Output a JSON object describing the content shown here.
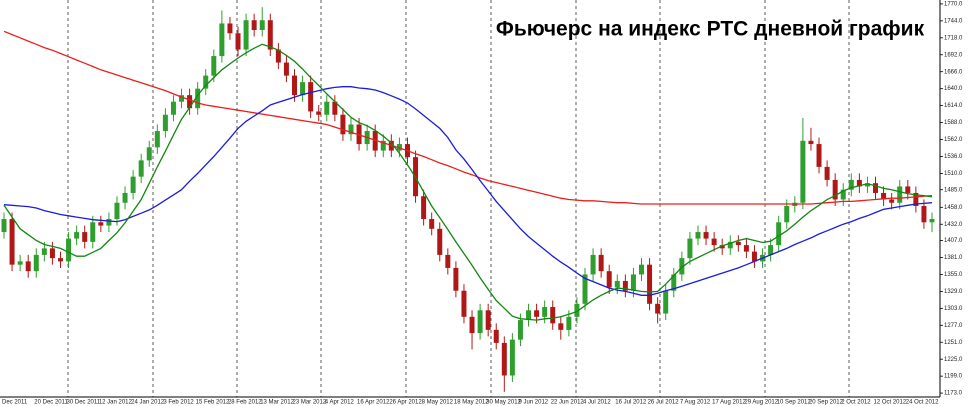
{
  "chart_data": {
    "type": "candlestick",
    "title": "Фьючерс на индекс РТС дневной график",
    "categories": [
      "Dec 2011",
      null,
      null,
      null,
      "20 Dec 2011",
      null,
      null,
      null,
      "30 Dec 2011",
      null,
      null,
      null,
      "12 Jan 2012",
      null,
      null,
      null,
      "24 Jan 2012",
      null,
      null,
      null,
      "3 Feb 2012",
      null,
      null,
      null,
      "15 Feb 2012",
      null,
      null,
      null,
      "28 Feb 2012",
      null,
      null,
      null,
      "13 Mar 2012",
      null,
      null,
      null,
      "23 Mar 2012",
      null,
      null,
      null,
      "4 Apr 2012",
      null,
      null,
      null,
      "16 Apr 2012",
      null,
      null,
      null,
      "26 Apr 2012",
      null,
      null,
      null,
      "8 May 2012",
      null,
      null,
      null,
      "18 May 2012",
      null,
      null,
      null,
      "30 May 2012",
      null,
      null,
      null,
      "9 Jun 2012",
      null,
      null,
      null,
      "22 Jun 2012",
      null,
      null,
      null,
      "4 Jul 2012",
      null,
      null,
      null,
      "16 Jul 2012",
      null,
      null,
      null,
      "26 Jul 2012",
      null,
      null,
      null,
      "7 Aug 2012",
      null,
      null,
      null,
      "17 Aug 2012",
      null,
      null,
      null,
      "29 Aug 2012",
      null,
      null,
      null,
      "10 Sep 2012",
      null,
      null,
      null,
      "20 Sep 2012",
      null,
      null,
      null,
      "2 Oct 2012",
      null,
      null,
      null,
      "12 Oct 2012",
      null,
      null,
      null,
      "24 Oct 2012",
      null,
      null,
      null
    ],
    "open": [
      1420,
      1440,
      1370,
      1375,
      1360,
      1385,
      1395,
      1380,
      1375,
      1410,
      1420,
      1405,
      1435,
      1430,
      1440,
      1465,
      1480,
      1505,
      1530,
      1550,
      1575,
      1600,
      1620,
      1630,
      1610,
      1640,
      1660,
      1690,
      1740,
      1725,
      1700,
      1745,
      1730,
      1745,
      1700,
      1680,
      1660,
      1630,
      1650,
      1605,
      1600,
      1620,
      1600,
      1570,
      1585,
      1555,
      1575,
      1545,
      1560,
      1545,
      1555,
      1535,
      1475,
      1440,
      1425,
      1385,
      1365,
      1330,
      1290,
      1265,
      1300,
      1270,
      1250,
      1200,
      1255,
      1285,
      1300,
      1290,
      1305,
      1280,
      1270,
      1290,
      1310,
      1355,
      1385,
      1360,
      1335,
      1345,
      1330,
      1355,
      1370,
      1310,
      1295,
      1330,
      1355,
      1380,
      1410,
      1420,
      1410,
      1400,
      1395,
      1405,
      1400,
      1390,
      1375,
      1385,
      1400,
      1435,
      1460,
      1465,
      1560,
      1555,
      1520,
      1500,
      1470,
      1485,
      1500,
      1490,
      1495,
      1480,
      1470,
      1465,
      1490,
      1480,
      1460,
      1435
    ],
    "high": [
      1450,
      1450,
      1385,
      1385,
      1395,
      1405,
      1405,
      1390,
      1420,
      1430,
      1430,
      1445,
      1445,
      1450,
      1475,
      1490,
      1515,
      1540,
      1560,
      1585,
      1610,
      1630,
      1640,
      1640,
      1650,
      1670,
      1700,
      1760,
      1750,
      1735,
      1755,
      1755,
      1765,
      1755,
      1710,
      1690,
      1670,
      1660,
      1660,
      1615,
      1630,
      1630,
      1610,
      1595,
      1595,
      1585,
      1585,
      1570,
      1570,
      1565,
      1565,
      1545,
      1485,
      1450,
      1435,
      1395,
      1375,
      1340,
      1300,
      1310,
      1310,
      1280,
      1260,
      1265,
      1295,
      1310,
      1310,
      1315,
      1315,
      1290,
      1300,
      1320,
      1365,
      1395,
      1395,
      1370,
      1355,
      1355,
      1365,
      1380,
      1380,
      1320,
      1340,
      1365,
      1390,
      1420,
      1430,
      1430,
      1420,
      1410,
      1415,
      1415,
      1410,
      1400,
      1395,
      1410,
      1445,
      1470,
      1475,
      1595,
      1580,
      1565,
      1530,
      1510,
      1495,
      1510,
      1510,
      1505,
      1505,
      1490,
      1480,
      1500,
      1500,
      1490,
      1470,
      1450
    ],
    "low": [
      1410,
      1360,
      1360,
      1350,
      1350,
      1375,
      1370,
      1365,
      1365,
      1400,
      1395,
      1395,
      1420,
      1420,
      1430,
      1455,
      1470,
      1495,
      1520,
      1540,
      1565,
      1590,
      1610,
      1600,
      1600,
      1630,
      1650,
      1680,
      1715,
      1690,
      1690,
      1720,
      1720,
      1690,
      1670,
      1650,
      1620,
      1620,
      1595,
      1590,
      1590,
      1590,
      1560,
      1560,
      1545,
      1545,
      1535,
      1535,
      1535,
      1535,
      1525,
      1465,
      1430,
      1415,
      1375,
      1355,
      1320,
      1280,
      1240,
      1255,
      1260,
      1240,
      1175,
      1190,
      1245,
      1275,
      1280,
      1280,
      1270,
      1255,
      1260,
      1280,
      1300,
      1345,
      1350,
      1325,
      1325,
      1320,
      1320,
      1345,
      1300,
      1280,
      1285,
      1320,
      1345,
      1370,
      1400,
      1400,
      1390,
      1385,
      1385,
      1390,
      1380,
      1365,
      1365,
      1375,
      1390,
      1425,
      1450,
      1455,
      1545,
      1510,
      1490,
      1460,
      1460,
      1475,
      1480,
      1480,
      1470,
      1460,
      1455,
      1455,
      1470,
      1450,
      1425,
      1420
    ],
    "close": [
      1440,
      1370,
      1375,
      1360,
      1385,
      1395,
      1380,
      1375,
      1410,
      1420,
      1405,
      1435,
      1430,
      1440,
      1465,
      1480,
      1505,
      1530,
      1550,
      1575,
      1600,
      1620,
      1630,
      1610,
      1640,
      1660,
      1690,
      1740,
      1725,
      1700,
      1745,
      1730,
      1745,
      1700,
      1680,
      1660,
      1630,
      1650,
      1605,
      1600,
      1620,
      1600,
      1570,
      1585,
      1555,
      1575,
      1545,
      1560,
      1545,
      1555,
      1535,
      1475,
      1440,
      1425,
      1385,
      1365,
      1330,
      1290,
      1265,
      1300,
      1270,
      1250,
      1200,
      1255,
      1285,
      1300,
      1290,
      1305,
      1280,
      1270,
      1290,
      1310,
      1355,
      1385,
      1360,
      1335,
      1345,
      1330,
      1355,
      1370,
      1310,
      1295,
      1330,
      1355,
      1380,
      1410,
      1420,
      1410,
      1400,
      1395,
      1405,
      1400,
      1390,
      1375,
      1385,
      1400,
      1435,
      1460,
      1465,
      1560,
      1555,
      1520,
      1500,
      1470,
      1485,
      1500,
      1490,
      1495,
      1480,
      1470,
      1465,
      1490,
      1480,
      1460,
      1435,
      1440
    ],
    "up_color": "#2e9e2e",
    "down_color": "#b01818",
    "lines": [
      {
        "color": "#e8201c",
        "values": [
          1728,
          1723,
          1718,
          1713,
          1708,
          1703,
          1699,
          1694,
          1689,
          1684,
          1679,
          1674,
          1669,
          1665,
          1661,
          1657,
          1653,
          1649,
          1645,
          1641,
          1637,
          1632,
          1627,
          1623,
          1618,
          1615,
          1613,
          1611,
          1609,
          1607,
          1605,
          1603,
          1601,
          1599,
          1597,
          1595,
          1593,
          1591,
          1589,
          1587,
          1585,
          1581,
          1577,
          1573,
          1569,
          1565,
          1561,
          1557,
          1553,
          1549,
          1545,
          1540,
          1536,
          1531,
          1526,
          1522,
          1517,
          1512,
          1508,
          1503,
          1499,
          1496,
          1493,
          1490,
          1487,
          1484,
          1481,
          1478,
          1475,
          1472,
          1470,
          1469,
          1468,
          1468,
          1467,
          1466,
          1465,
          1465,
          1464,
          1463,
          1463,
          1463,
          1463,
          1463,
          1463,
          1463,
          1463,
          1463,
          1463,
          1463,
          1463,
          1463,
          1463,
          1463,
          1463,
          1463,
          1463,
          1463,
          1463,
          1463,
          1463,
          1464,
          1465,
          1466,
          1467,
          1467,
          1468,
          1469,
          1470,
          1471,
          1472,
          1472,
          1473,
          1474,
          1475,
          1476
        ]
      },
      {
        "color": "#1c1cdc",
        "values": [
          1462,
          1461,
          1460,
          1459,
          1457,
          1453,
          1450,
          1447,
          1445,
          1443,
          1441,
          1439,
          1438,
          1437,
          1436,
          1439,
          1444,
          1449,
          1454,
          1461,
          1469,
          1477,
          1485,
          1498,
          1510,
          1523,
          1536,
          1550,
          1564,
          1579,
          1590,
          1598,
          1606,
          1615,
          1619,
          1623,
          1627,
          1631,
          1634,
          1637,
          1640,
          1642,
          1643,
          1643,
          1641,
          1640,
          1638,
          1634,
          1629,
          1624,
          1618,
          1609,
          1599,
          1589,
          1579,
          1565,
          1546,
          1532,
          1516,
          1499,
          1483,
          1467,
          1453,
          1439,
          1425,
          1413,
          1403,
          1393,
          1383,
          1374,
          1366,
          1357,
          1349,
          1344,
          1339,
          1334,
          1331,
          1329,
          1326,
          1323,
          1323,
          1326,
          1330,
          1333,
          1337,
          1341,
          1345,
          1349,
          1353,
          1357,
          1361,
          1365,
          1370,
          1375,
          1380,
          1385,
          1390,
          1395,
          1401,
          1406,
          1411,
          1417,
          1422,
          1427,
          1432,
          1436,
          1441,
          1445,
          1450,
          1455,
          1457,
          1459,
          1461,
          1463,
          1464,
          1465
        ]
      },
      {
        "color": "#118811",
        "values": [
          1461,
          1443,
          1425,
          1416,
          1407,
          1401,
          1398,
          1395,
          1389,
          1383,
          1383,
          1389,
          1395,
          1407,
          1419,
          1434,
          1452,
          1470,
          1495,
          1520,
          1544,
          1569,
          1593,
          1611,
          1630,
          1645,
          1657,
          1669,
          1678,
          1687,
          1695,
          1702,
          1708,
          1704,
          1699,
          1691,
          1682,
          1670,
          1657,
          1645,
          1632,
          1620,
          1608,
          1596,
          1588,
          1583,
          1576,
          1567,
          1557,
          1541,
          1523,
          1504,
          1482,
          1460,
          1442,
          1424,
          1405,
          1387,
          1369,
          1350,
          1332,
          1315,
          1303,
          1291,
          1287,
          1286,
          1285,
          1287,
          1288,
          1290,
          1294,
          1298,
          1307,
          1316,
          1323,
          1329,
          1334,
          1333,
          1331,
          1329,
          1328,
          1329,
          1340,
          1353,
          1366,
          1375,
          1381,
          1387,
          1393,
          1399,
          1403,
          1407,
          1410,
          1407,
          1404,
          1406,
          1414,
          1422,
          1432,
          1443,
          1453,
          1461,
          1470,
          1476,
          1483,
          1488,
          1491,
          1494,
          1491,
          1487,
          1485,
          1482,
          1479,
          1477,
          1476,
          1474
        ]
      }
    ],
    "ylim": [
      1167,
      1776
    ],
    "yticks": [
      {
        "value": 1770,
        "label": "1770.0"
      },
      {
        "value": 1744,
        "label": "1744.0"
      },
      {
        "value": 1718,
        "label": "1718.0"
      },
      {
        "value": 1692,
        "label": "1692.0"
      },
      {
        "value": 1666,
        "label": "1666.0"
      },
      {
        "value": 1640,
        "label": "1640.0"
      },
      {
        "value": 1614,
        "label": "1614.0"
      },
      {
        "value": 1588,
        "label": "1588.0"
      },
      {
        "value": 1562,
        "label": "1562.0"
      },
      {
        "value": 1536,
        "label": "1536.0"
      },
      {
        "value": 1510,
        "label": "1510.0"
      },
      {
        "value": 1485,
        "label": "1485.0"
      },
      {
        "value": 1458,
        "label": "1458.0"
      },
      {
        "value": 1432,
        "label": "1432.0"
      },
      {
        "value": 1407,
        "label": "1407.0"
      },
      {
        "value": 1381,
        "label": "1381.0"
      },
      {
        "value": 1355,
        "label": "1355.0"
      },
      {
        "value": 1329,
        "label": "1329.0"
      },
      {
        "value": 1303,
        "label": "1303.0"
      },
      {
        "value": 1277,
        "label": "1277.0"
      },
      {
        "value": 1251,
        "label": "1251.0"
      },
      {
        "value": 1225,
        "label": "1225.0"
      },
      {
        "value": 1199,
        "label": "1199.0"
      },
      {
        "value": 1173,
        "label": "1173.0"
      }
    ]
  }
}
